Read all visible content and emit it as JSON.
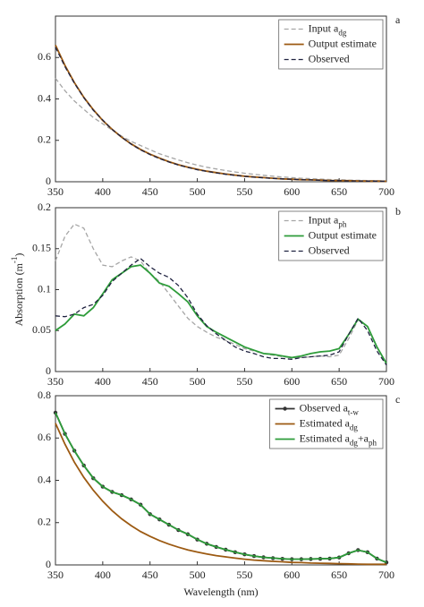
{
  "chart_data": [
    {
      "type": "line",
      "label": "a",
      "x": [
        350,
        360,
        370,
        380,
        390,
        400,
        410,
        420,
        430,
        440,
        450,
        460,
        470,
        480,
        490,
        500,
        510,
        520,
        530,
        540,
        550,
        560,
        570,
        580,
        590,
        600,
        610,
        620,
        630,
        640,
        650,
        660,
        670,
        680,
        690,
        700
      ],
      "xlim": [
        350,
        700
      ],
      "xticks": [
        350,
        400,
        450,
        500,
        550,
        600,
        650,
        700
      ],
      "ylim": [
        0,
        0.8
      ],
      "yticks": [
        0,
        0.2,
        0.4,
        0.6
      ],
      "legend": "upper right",
      "series": [
        {
          "name": [
            "Input a",
            "dg"
          ],
          "color": "#a6a6a6",
          "dash": true,
          "marker": false,
          "values": [
            0.5,
            0.44,
            0.39,
            0.35,
            0.31,
            0.28,
            0.25,
            0.22,
            0.195,
            0.175,
            0.155,
            0.135,
            0.12,
            0.105,
            0.092,
            0.08,
            0.07,
            0.062,
            0.054,
            0.047,
            0.041,
            0.036,
            0.031,
            0.027,
            0.023,
            0.02,
            0.017,
            0.015,
            0.013,
            0.011,
            0.01,
            0.008,
            0.007,
            0.006,
            0.005,
            0.004
          ]
        },
        {
          "name": [
            "Output estimate"
          ],
          "color": "#9c5a12",
          "dash": false,
          "marker": false,
          "values": [
            0.66,
            0.562,
            0.479,
            0.408,
            0.348,
            0.296,
            0.253,
            0.215,
            0.183,
            0.156,
            0.133,
            0.114,
            0.097,
            0.082,
            0.07,
            0.06,
            0.051,
            0.044,
            0.037,
            0.032,
            0.027,
            0.023,
            0.02,
            0.017,
            0.014,
            0.012,
            0.01,
            0.009,
            0.008,
            0.006,
            0.005,
            0.005,
            0.004,
            0.003,
            0.003,
            0.002
          ]
        },
        {
          "name": [
            "Observed"
          ],
          "color": "#1f2240",
          "dash": true,
          "marker": false,
          "values": [
            0.65,
            0.556,
            0.476,
            0.406,
            0.345,
            0.298,
            0.252,
            0.216,
            0.181,
            0.154,
            0.131,
            0.112,
            0.095,
            0.081,
            0.069,
            0.058,
            0.05,
            0.043,
            0.036,
            0.031,
            0.026,
            0.022,
            0.019,
            0.016,
            0.014,
            0.012,
            0.01,
            0.009,
            0.007,
            0.006,
            0.005,
            0.004,
            0.004,
            0.003,
            0.003,
            0.002
          ]
        }
      ]
    },
    {
      "type": "line",
      "label": "b",
      "ylabel": [
        "Absorption (m",
        "-1",
        ")"
      ],
      "x": [
        350,
        360,
        370,
        380,
        390,
        400,
        410,
        420,
        430,
        440,
        450,
        460,
        470,
        480,
        490,
        500,
        510,
        520,
        530,
        540,
        550,
        560,
        570,
        580,
        590,
        600,
        610,
        620,
        630,
        640,
        650,
        660,
        670,
        680,
        690,
        700
      ],
      "xlim": [
        350,
        700
      ],
      "xticks": [
        350,
        400,
        450,
        500,
        550,
        600,
        650,
        700
      ],
      "ylim": [
        0,
        0.2
      ],
      "yticks": [
        0,
        0.05,
        0.1,
        0.15,
        0.2
      ],
      "legend": "upper right",
      "series": [
        {
          "name": [
            "Input a",
            "ph"
          ],
          "color": "#a6a6a6",
          "dash": true,
          "marker": false,
          "values": [
            0.135,
            0.165,
            0.18,
            0.175,
            0.15,
            0.13,
            0.128,
            0.135,
            0.14,
            0.135,
            0.12,
            0.11,
            0.095,
            0.08,
            0.065,
            0.055,
            0.048,
            0.042,
            0.038,
            0.033,
            0.028,
            0.025,
            0.022,
            0.02,
            0.018,
            0.017,
            0.017,
            0.018,
            0.019,
            0.018,
            0.02,
            0.04,
            0.063,
            0.055,
            0.03,
            0.01
          ]
        },
        {
          "name": [
            "Output estimate"
          ],
          "color": "#2e9c3a",
          "dash": false,
          "marker": false,
          "values": [
            0.05,
            0.058,
            0.07,
            0.068,
            0.078,
            0.095,
            0.112,
            0.12,
            0.128,
            0.13,
            0.12,
            0.108,
            0.104,
            0.095,
            0.085,
            0.068,
            0.055,
            0.048,
            0.042,
            0.036,
            0.03,
            0.026,
            0.022,
            0.021,
            0.019,
            0.017,
            0.019,
            0.022,
            0.024,
            0.025,
            0.028,
            0.045,
            0.064,
            0.055,
            0.03,
            0.01
          ]
        },
        {
          "name": [
            "Observed"
          ],
          "color": "#1f2240",
          "dash": true,
          "marker": false,
          "values": [
            0.068,
            0.067,
            0.07,
            0.078,
            0.082,
            0.093,
            0.11,
            0.12,
            0.13,
            0.138,
            0.128,
            0.12,
            0.115,
            0.105,
            0.09,
            0.07,
            0.056,
            0.046,
            0.038,
            0.03,
            0.025,
            0.022,
            0.018,
            0.016,
            0.016,
            0.015,
            0.017,
            0.018,
            0.019,
            0.02,
            0.024,
            0.045,
            0.065,
            0.05,
            0.025,
            0.008
          ]
        }
      ]
    },
    {
      "type": "line",
      "label": "c",
      "xlabel": "Wavelength (nm)",
      "x": [
        350,
        360,
        370,
        380,
        390,
        400,
        410,
        420,
        430,
        440,
        450,
        460,
        470,
        480,
        490,
        500,
        510,
        520,
        530,
        540,
        550,
        560,
        570,
        580,
        590,
        600,
        610,
        620,
        630,
        640,
        650,
        660,
        670,
        680,
        690,
        700
      ],
      "xlim": [
        350,
        700
      ],
      "xticks": [
        350,
        400,
        450,
        500,
        550,
        600,
        650,
        700
      ],
      "ylim": [
        0,
        0.8
      ],
      "yticks": [
        0,
        0.2,
        0.4,
        0.6,
        0.8
      ],
      "legend": "upper right",
      "series": [
        {
          "name": [
            "Observed a",
            "t-w"
          ],
          "color": "#333333",
          "dash": false,
          "marker": true,
          "values": [
            0.72,
            0.62,
            0.54,
            0.47,
            0.41,
            0.37,
            0.345,
            0.33,
            0.31,
            0.285,
            0.24,
            0.215,
            0.19,
            0.165,
            0.145,
            0.12,
            0.1,
            0.085,
            0.072,
            0.06,
            0.05,
            0.042,
            0.036,
            0.032,
            0.029,
            0.027,
            0.027,
            0.028,
            0.029,
            0.03,
            0.035,
            0.055,
            0.07,
            0.06,
            0.03,
            0.012
          ]
        },
        {
          "name": [
            "Estimated a",
            "dg"
          ],
          "color": "#9c5a12",
          "dash": false,
          "marker": false,
          "values": [
            0.67,
            0.571,
            0.486,
            0.414,
            0.353,
            0.301,
            0.256,
            0.218,
            0.186,
            0.158,
            0.135,
            0.115,
            0.098,
            0.084,
            0.071,
            0.061,
            0.052,
            0.044,
            0.038,
            0.032,
            0.027,
            0.023,
            0.02,
            0.017,
            0.015,
            0.012,
            0.011,
            0.009,
            0.008,
            0.007,
            0.006,
            0.005,
            0.004,
            0.003,
            0.003,
            0.003
          ]
        },
        {
          "name": [
            "Estimated a",
            "dg",
            "+a",
            "ph"
          ],
          "color": "#2e9c3a",
          "dash": false,
          "marker": false,
          "values": [
            0.72,
            0.62,
            0.54,
            0.47,
            0.41,
            0.37,
            0.345,
            0.33,
            0.31,
            0.285,
            0.24,
            0.215,
            0.19,
            0.165,
            0.145,
            0.12,
            0.1,
            0.085,
            0.072,
            0.06,
            0.05,
            0.042,
            0.036,
            0.032,
            0.029,
            0.027,
            0.027,
            0.028,
            0.029,
            0.03,
            0.035,
            0.055,
            0.07,
            0.06,
            0.03,
            0.012
          ]
        }
      ]
    }
  ]
}
